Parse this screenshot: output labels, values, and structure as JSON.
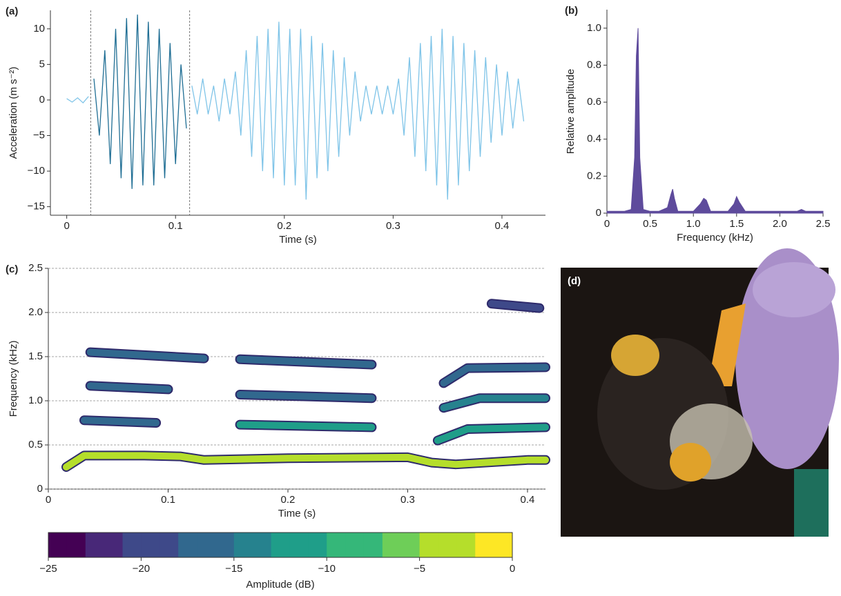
{
  "chart_data": [
    {
      "type": "line",
      "panel_label": "(a)",
      "x_label": "Time (s)",
      "y_label": "Acceleration (m s⁻²)",
      "xlim": [
        -0.015,
        0.44
      ],
      "ylim": [
        -16.2,
        12.6
      ],
      "xticks": [
        0,
        0.1,
        0.2,
        0.3,
        0.4
      ],
      "yticks": [
        {
          "value": -15,
          "label": "−15"
        },
        {
          "value": -10,
          "label": "−10"
        },
        {
          "value": -5,
          "label": "−5"
        },
        0,
        5,
        10
      ],
      "vlines": [
        0.022,
        0.113
      ],
      "series": [
        {
          "color": "#7fc4e8",
          "x": [
            0,
            0.005,
            0.01,
            0.015,
            0.02
          ],
          "values": [
            0.2,
            -0.3,
            0.3,
            -0.4,
            0.5
          ]
        },
        {
          "color": "#1f6e94",
          "x": [
            0.025,
            0.03,
            0.035,
            0.04,
            0.045,
            0.05,
            0.055,
            0.06,
            0.065,
            0.07,
            0.075,
            0.08,
            0.085,
            0.09,
            0.095,
            0.1,
            0.105,
            0.11
          ],
          "values": [
            3,
            -5,
            7,
            -9,
            10,
            -11,
            11.5,
            -12.5,
            12,
            -12,
            11,
            -12,
            10,
            -11,
            8,
            -9,
            5,
            -4
          ]
        },
        {
          "color": "#7fc4e8",
          "x": [
            0.115,
            0.12,
            0.125,
            0.13,
            0.135,
            0.14,
            0.145,
            0.15,
            0.155,
            0.16,
            0.165,
            0.17,
            0.175,
            0.18,
            0.185,
            0.19,
            0.195,
            0.2,
            0.205,
            0.21,
            0.215,
            0.22,
            0.225,
            0.23,
            0.235,
            0.24,
            0.245,
            0.25,
            0.255,
            0.26,
            0.265,
            0.27,
            0.275,
            0.28,
            0.285,
            0.29,
            0.295,
            0.3,
            0.305,
            0.31,
            0.315,
            0.32,
            0.325,
            0.33,
            0.335,
            0.34,
            0.345,
            0.35,
            0.355,
            0.36,
            0.365,
            0.37,
            0.375,
            0.38,
            0.385,
            0.39,
            0.395,
            0.4,
            0.405,
            0.41,
            0.415,
            0.42
          ],
          "values": [
            2,
            -2,
            3,
            -2,
            2,
            -3,
            3,
            -2,
            4,
            -5,
            7,
            -8,
            9,
            -10,
            10,
            -11,
            11,
            -12,
            10,
            -12,
            10,
            -14,
            9,
            -11,
            8,
            -10,
            7,
            -8,
            6,
            -5,
            4,
            -3,
            2,
            -2,
            2,
            -2,
            2,
            -2,
            3,
            -5,
            6,
            -8,
            8,
            -10,
            9,
            -12,
            10,
            -14,
            9,
            -12,
            8,
            -10,
            7,
            -8,
            6,
            -6,
            5,
            -5,
            4,
            -4,
            3,
            -3
          ]
        }
      ]
    },
    {
      "type": "area",
      "panel_label": "(b)",
      "x_label": "Frequency (kHz)",
      "y_label": "Relative amplitude",
      "color": "#5e4b9c",
      "xlim": [
        0,
        2.5
      ],
      "ylim": [
        0,
        1.1
      ],
      "xticks": [
        0,
        0.5,
        {
          "value": 1,
          "label": "1.0"
        },
        1.5,
        {
          "value": 2,
          "label": "2.0"
        },
        2.5
      ],
      "yticks": [
        0,
        0.2,
        0.4,
        0.6,
        0.8,
        {
          "value": 1,
          "label": "1.0"
        }
      ],
      "x": [
        0,
        0.1,
        0.2,
        0.28,
        0.32,
        0.34,
        0.36,
        0.38,
        0.42,
        0.5,
        0.6,
        0.7,
        0.74,
        0.76,
        0.78,
        0.82,
        0.9,
        1.0,
        1.08,
        1.12,
        1.15,
        1.2,
        1.3,
        1.4,
        1.47,
        1.5,
        1.53,
        1.6,
        1.7,
        1.8,
        1.9,
        2.0,
        2.1,
        2.2,
        2.25,
        2.3,
        2.4,
        2.5
      ],
      "values": [
        0.01,
        0.01,
        0.01,
        0.02,
        0.3,
        0.85,
        1.0,
        0.3,
        0.02,
        0.01,
        0.01,
        0.03,
        0.1,
        0.13,
        0.08,
        0.01,
        0.01,
        0.01,
        0.05,
        0.08,
        0.07,
        0.01,
        0.01,
        0.01,
        0.05,
        0.09,
        0.06,
        0.01,
        0.01,
        0.01,
        0.01,
        0.01,
        0.01,
        0.01,
        0.02,
        0.01,
        0.01,
        0.01
      ]
    },
    {
      "type": "spectrogram",
      "panel_label": "(c)",
      "x_label": "Time (s)",
      "y_label": "Frequency (kHz)",
      "grid": true,
      "xlim": [
        0,
        0.415
      ],
      "ylim": [
        0,
        2.5
      ],
      "xticks": [
        0,
        0.1,
        0.2,
        0.3,
        0.4
      ],
      "yticks": [
        0,
        0.5,
        {
          "value": 1,
          "label": "1.0"
        },
        1.5,
        {
          "value": 2,
          "label": "2.0"
        },
        2.5
      ],
      "colorbar": {
        "label": "Amplitude (dB)",
        "colormap": "viridis",
        "clim": [
          -25,
          0
        ],
        "ticks": [
          {
            "value": -25,
            "label": "−25"
          },
          {
            "value": -20,
            "label": "−20"
          },
          {
            "value": -15,
            "label": "−15"
          },
          {
            "value": -10,
            "label": "−10"
          },
          {
            "value": -5,
            "label": "−5"
          },
          0
        ]
      },
      "tracks": [
        {
          "x": [
            0.015,
            0.03,
            0.08,
            0.11,
            0.13,
            0.2,
            0.3,
            0.32,
            0.34,
            0.4,
            0.415
          ],
          "values": [
            0.25,
            0.38,
            0.38,
            0.37,
            0.33,
            0.35,
            0.36,
            0.3,
            0.28,
            0.33,
            0.33
          ],
          "amplitude": -3
        },
        {
          "x": [
            0.03,
            0.09
          ],
          "values": [
            0.78,
            0.75
          ],
          "amplitude": -17
        },
        {
          "x": [
            0.16,
            0.27
          ],
          "values": [
            0.73,
            0.7
          ],
          "amplitude": -12
        },
        {
          "x": [
            0.325,
            0.35,
            0.415
          ],
          "values": [
            0.55,
            0.68,
            0.7
          ],
          "amplitude": -10
        },
        {
          "x": [
            0.035,
            0.1
          ],
          "values": [
            1.17,
            1.13
          ],
          "amplitude": -18
        },
        {
          "x": [
            0.16,
            0.27
          ],
          "values": [
            1.07,
            1.03
          ],
          "amplitude": -18
        },
        {
          "x": [
            0.33,
            0.36,
            0.415
          ],
          "values": [
            0.92,
            1.03,
            1.03
          ],
          "amplitude": -14
        },
        {
          "x": [
            0.035,
            0.13
          ],
          "values": [
            1.55,
            1.48
          ],
          "amplitude": -17
        },
        {
          "x": [
            0.16,
            0.27
          ],
          "values": [
            1.47,
            1.41
          ],
          "amplitude": -16
        },
        {
          "x": [
            0.33,
            0.35,
            0.415
          ],
          "values": [
            1.2,
            1.37,
            1.38
          ],
          "amplitude": -16
        },
        {
          "x": [
            0.37,
            0.41
          ],
          "values": [
            2.1,
            2.05
          ],
          "amplitude": -20
        }
      ]
    }
  ],
  "photo": {
    "label": "(d)"
  }
}
